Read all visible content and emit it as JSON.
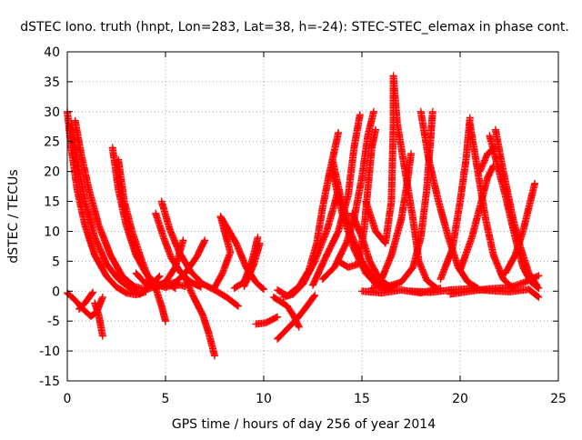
{
  "chart_data": {
    "type": "scatter",
    "title": "dSTEC Iono. truth (hnpt, Lon=283, Lat=38, h=-24): STEC-STEC_elemax in phase cont.",
    "xlabel": "GPS time / hours of day 256 of year 2014",
    "ylabel": "dSTEC  / TECUs",
    "xlim": [
      0,
      25
    ],
    "ylim": [
      -15,
      40
    ],
    "xticks": [
      0,
      5,
      10,
      15,
      20,
      25
    ],
    "yticks": [
      -15,
      -10,
      -5,
      0,
      5,
      10,
      15,
      20,
      25,
      30,
      35,
      40
    ],
    "grid": true,
    "marker": "+",
    "series_color": "#ff0000",
    "arcs": [
      [
        [
          0.0,
          30
        ],
        [
          0.2,
          24
        ],
        [
          0.5,
          17
        ],
        [
          0.9,
          11
        ],
        [
          1.4,
          6
        ],
        [
          2.0,
          2.5
        ],
        [
          2.5,
          0.7
        ],
        [
          3.0,
          -0.3
        ],
        [
          3.5,
          -0.6
        ],
        [
          4.0,
          -0.1
        ]
      ],
      [
        [
          0.2,
          28
        ],
        [
          0.5,
          22
        ],
        [
          0.9,
          15
        ],
        [
          1.4,
          9
        ],
        [
          2.0,
          4.5
        ],
        [
          2.6,
          2
        ],
        [
          3.2,
          0.5
        ],
        [
          3.7,
          -0.5
        ],
        [
          4.2,
          0.8
        ],
        [
          4.7,
          2.5
        ]
      ],
      [
        [
          0.4,
          28.5
        ],
        [
          0.7,
          23
        ],
        [
          1.1,
          17
        ],
        [
          1.6,
          11
        ],
        [
          2.2,
          6
        ],
        [
          2.8,
          2.5
        ],
        [
          3.4,
          0.8
        ],
        [
          4.0,
          0.3
        ],
        [
          4.5,
          0.8
        ],
        [
          5.0,
          1.5
        ],
        [
          5.5,
          0.5
        ]
      ],
      [
        [
          0.0,
          -0.3
        ],
        [
          0.4,
          -1.5
        ],
        [
          0.8,
          -3
        ],
        [
          1.2,
          -4.2
        ],
        [
          1.5,
          -3.5
        ],
        [
          1.8,
          -1
        ]
      ],
      [
        [
          1.4,
          -2
        ],
        [
          1.6,
          -4
        ],
        [
          1.8,
          -7.5
        ]
      ],
      [
        [
          0.6,
          -3
        ],
        [
          0.9,
          -2
        ],
        [
          1.3,
          -0.2
        ]
      ],
      [
        [
          2.3,
          24
        ],
        [
          2.6,
          17
        ],
        [
          3.0,
          11
        ],
        [
          3.5,
          6
        ],
        [
          4.0,
          3
        ],
        [
          4.5,
          1.3
        ],
        [
          5.0,
          0.6
        ],
        [
          5.5,
          1.2
        ],
        [
          6.0,
          0.8
        ]
      ],
      [
        [
          2.6,
          22
        ],
        [
          2.9,
          15
        ],
        [
          3.3,
          10
        ],
        [
          3.7,
          6
        ],
        [
          4.1,
          2.5
        ],
        [
          4.5,
          0.5
        ],
        [
          4.8,
          -2.5
        ],
        [
          5.0,
          -5
        ]
      ],
      [
        [
          4.8,
          15
        ],
        [
          5.2,
          10.5
        ],
        [
          5.7,
          6.5
        ],
        [
          6.3,
          3.2
        ],
        [
          6.9,
          1.2
        ],
        [
          7.5,
          0.2
        ],
        [
          8.1,
          -1
        ],
        [
          8.7,
          -2.5
        ]
      ],
      [
        [
          4.5,
          13
        ],
        [
          4.9,
          9
        ],
        [
          5.3,
          5.5
        ],
        [
          5.8,
          3
        ],
        [
          6.3,
          1.5
        ],
        [
          6.8,
          0.7
        ]
      ],
      [
        [
          3.5,
          3
        ],
        [
          4.0,
          1.2
        ],
        [
          4.5,
          0.7
        ],
        [
          5.0,
          1.5
        ],
        [
          5.5,
          4
        ],
        [
          5.9,
          8.5
        ]
      ],
      [
        [
          4.0,
          1.5
        ],
        [
          4.8,
          0.8
        ],
        [
          5.5,
          1.5
        ],
        [
          6.0,
          3
        ],
        [
          6.6,
          5.8
        ],
        [
          7.0,
          8.5
        ]
      ],
      [
        [
          6.0,
          2.2
        ],
        [
          6.4,
          -0.8
        ],
        [
          6.9,
          -4
        ],
        [
          7.2,
          -7
        ],
        [
          7.5,
          -10.8
        ]
      ],
      [
        [
          7.5,
          0.6
        ],
        [
          7.9,
          3
        ],
        [
          8.3,
          6.5
        ],
        [
          7.8,
          12.5
        ],
        [
          8.6,
          8
        ],
        [
          9.1,
          4
        ],
        [
          9.6,
          1.5
        ],
        [
          10.0,
          0.3
        ]
      ],
      [
        [
          8.5,
          0.5
        ],
        [
          9.0,
          1.5
        ],
        [
          9.4,
          5
        ],
        [
          9.7,
          9
        ]
      ],
      [
        [
          9.0,
          0.8
        ],
        [
          9.5,
          4.5
        ],
        [
          9.8,
          8
        ]
      ],
      [
        [
          9.6,
          -5.5
        ],
        [
          10.1,
          -5.3
        ],
        [
          10.7,
          -4.3
        ]
      ],
      [
        [
          10.7,
          0.2
        ],
        [
          11.2,
          -0.8
        ],
        [
          11.8,
          0.8
        ],
        [
          12.3,
          3.5
        ],
        [
          12.7,
          8
        ],
        [
          13.0,
          14
        ],
        [
          13.3,
          19
        ],
        [
          13.5,
          22
        ],
        [
          13.8,
          26.5
        ]
      ],
      [
        [
          11.0,
          -1
        ],
        [
          11.5,
          -0.5
        ],
        [
          12.0,
          1.2
        ],
        [
          12.6,
          5
        ],
        [
          13.2,
          10
        ],
        [
          13.6,
          14.5
        ],
        [
          13.8,
          17
        ]
      ],
      [
        [
          10.5,
          -1
        ],
        [
          11.2,
          -2.5
        ],
        [
          11.5,
          -4
        ],
        [
          11.8,
          -6
        ]
      ],
      [
        [
          10.7,
          -8
        ],
        [
          11.2,
          -6.3
        ],
        [
          11.7,
          -4.6
        ],
        [
          12.2,
          -2.5
        ],
        [
          12.6,
          -0.7
        ]
      ],
      [
        [
          12.5,
          1
        ],
        [
          13.2,
          6
        ],
        [
          13.8,
          10
        ],
        [
          14.3,
          16
        ],
        [
          14.6,
          24
        ],
        [
          14.9,
          29.5
        ]
      ],
      [
        [
          13.0,
          2
        ],
        [
          13.6,
          4
        ],
        [
          14.2,
          8
        ],
        [
          14.6,
          12
        ],
        [
          15.0,
          19
        ],
        [
          15.3,
          26
        ],
        [
          15.6,
          30
        ]
      ],
      [
        [
          13.5,
          20
        ],
        [
          14.0,
          13
        ],
        [
          14.6,
          7
        ],
        [
          15.2,
          3
        ],
        [
          15.7,
          1.2
        ],
        [
          16.3,
          0.3
        ],
        [
          16.8,
          1.2
        ]
      ],
      [
        [
          13.5,
          22
        ],
        [
          13.9,
          16
        ],
        [
          14.4,
          10
        ],
        [
          15.0,
          5
        ],
        [
          15.6,
          2
        ],
        [
          16.2,
          0.5
        ]
      ],
      [
        [
          13.8,
          5
        ],
        [
          14.3,
          4
        ],
        [
          14.8,
          4.5
        ],
        [
          15.1,
          10
        ],
        [
          15.3,
          17
        ],
        [
          15.5,
          24
        ],
        [
          15.7,
          27
        ]
      ],
      [
        [
          14.5,
          13
        ],
        [
          15.0,
          9
        ],
        [
          15.4,
          5
        ],
        [
          15.9,
          2
        ],
        [
          16.4,
          0.8
        ]
      ],
      [
        [
          15.2,
          15
        ],
        [
          15.7,
          10
        ],
        [
          16.2,
          8
        ],
        [
          16.5,
          15
        ],
        [
          16.6,
          28
        ],
        [
          16.6,
          36
        ],
        [
          16.8,
          28
        ],
        [
          17.2,
          20
        ],
        [
          17.6,
          12
        ],
        [
          17.9,
          5
        ],
        [
          18.3,
          1.8
        ],
        [
          18.8,
          0.5
        ]
      ],
      [
        [
          16.0,
          2
        ],
        [
          16.5,
          6
        ],
        [
          17.0,
          12
        ],
        [
          17.3,
          18
        ],
        [
          17.5,
          23
        ]
      ],
      [
        [
          15.5,
          0.5
        ],
        [
          16.3,
          0.8
        ],
        [
          17.0,
          1.5
        ],
        [
          17.6,
          4
        ],
        [
          18.0,
          9
        ],
        [
          18.3,
          17
        ],
        [
          18.6,
          30
        ]
      ],
      [
        [
          18.0,
          30
        ],
        [
          18.4,
          22
        ],
        [
          18.9,
          15
        ],
        [
          19.4,
          9
        ],
        [
          19.9,
          4
        ],
        [
          20.4,
          1.5
        ],
        [
          20.9,
          0.5
        ]
      ],
      [
        [
          19.0,
          2
        ],
        [
          19.6,
          7
        ],
        [
          20.0,
          15
        ],
        [
          20.3,
          22
        ],
        [
          20.5,
          29
        ]
      ],
      [
        [
          20.5,
          28
        ],
        [
          20.9,
          20
        ],
        [
          21.3,
          12
        ],
        [
          21.7,
          6
        ],
        [
          22.2,
          2
        ],
        [
          22.7,
          0.5
        ]
      ],
      [
        [
          20.0,
          3.5
        ],
        [
          20.6,
          9
        ],
        [
          21.0,
          14
        ],
        [
          21.4,
          19
        ],
        [
          21.7,
          21
        ]
      ],
      [
        [
          21.5,
          26
        ],
        [
          21.9,
          21
        ],
        [
          22.3,
          16
        ],
        [
          22.8,
          9
        ],
        [
          23.2,
          4
        ],
        [
          23.6,
          1.5
        ],
        [
          24.0,
          0.5
        ]
      ],
      [
        [
          21.0,
          20
        ],
        [
          21.4,
          23
        ],
        [
          21.8,
          24
        ]
      ],
      [
        [
          21.8,
          27
        ],
        [
          22.2,
          20
        ],
        [
          22.7,
          12
        ],
        [
          23.1,
          7
        ],
        [
          23.5,
          3
        ],
        [
          23.9,
          1
        ]
      ],
      [
        [
          22.3,
          3
        ],
        [
          22.8,
          6
        ],
        [
          23.2,
          10
        ],
        [
          23.5,
          14
        ],
        [
          23.8,
          18
        ]
      ],
      [
        [
          19.5,
          -0.5
        ],
        [
          20.5,
          0
        ],
        [
          21.5,
          0.4
        ],
        [
          22.5,
          0.6
        ],
        [
          23.3,
          1.5
        ],
        [
          24.0,
          2.6
        ]
      ],
      [
        [
          17.5,
          0
        ],
        [
          18.5,
          -0.2
        ],
        [
          19.5,
          0.2
        ],
        [
          20.5,
          0.4
        ],
        [
          21.5,
          0.1
        ],
        [
          22.5,
          -0.1
        ],
        [
          23.5,
          0.3
        ],
        [
          24.0,
          -1
        ]
      ],
      [
        [
          15.0,
          0
        ],
        [
          16.0,
          -0.3
        ],
        [
          17.0,
          0.2
        ],
        [
          18.0,
          -0.3
        ],
        [
          19.0,
          0.5
        ]
      ]
    ]
  }
}
